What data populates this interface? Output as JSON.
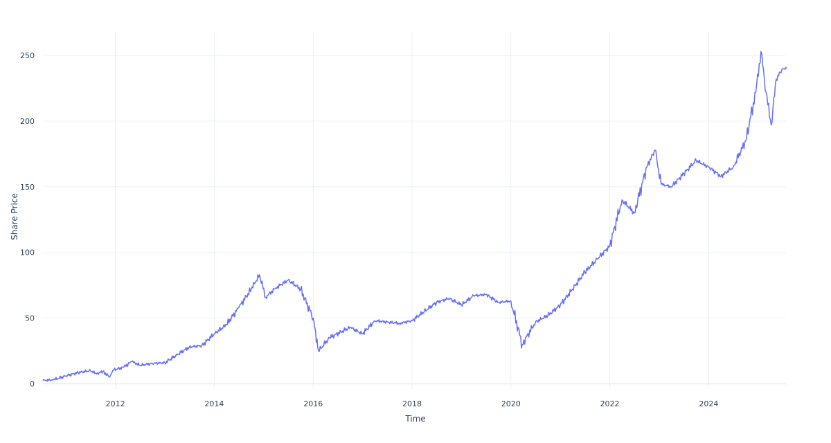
{
  "chart_data": {
    "type": "line",
    "title": "",
    "xlabel": "Time",
    "ylabel": "Share Price",
    "x_ticks": [
      "2012",
      "2014",
      "2016",
      "2018",
      "2020",
      "2022",
      "2024"
    ],
    "y_ticks": [
      "0",
      "50",
      "100",
      "150",
      "200",
      "250"
    ],
    "x_range": [
      "2010-07-15",
      "2025-07-31"
    ],
    "ylim": [
      -4,
      268
    ],
    "grid": true,
    "legend": "none",
    "series": [
      {
        "color": "#636efa",
        "points": [
          [
            "2010-07-15",
            2.5
          ],
          [
            "2010-10-01",
            3.0
          ],
          [
            "2011-01-01",
            6.0
          ],
          [
            "2011-04-01",
            8.5
          ],
          [
            "2011-07-01",
            10.0
          ],
          [
            "2011-08-15",
            7.5
          ],
          [
            "2011-10-01",
            9.5
          ],
          [
            "2011-11-20",
            5.0
          ],
          [
            "2011-12-15",
            10.5
          ],
          [
            "2012-03-01",
            12.5
          ],
          [
            "2012-05-01",
            17.0
          ],
          [
            "2012-07-01",
            14.0
          ],
          [
            "2012-10-01",
            15.5
          ],
          [
            "2013-01-01",
            16.0
          ],
          [
            "2013-04-01",
            22.0
          ],
          [
            "2013-07-01",
            28.0
          ],
          [
            "2013-10-01",
            29.0
          ],
          [
            "2014-01-01",
            38.0
          ],
          [
            "2014-04-01",
            45.0
          ],
          [
            "2014-07-01",
            58.0
          ],
          [
            "2014-10-01",
            72.0
          ],
          [
            "2014-12-01",
            83.0
          ],
          [
            "2015-01-15",
            66.0
          ],
          [
            "2015-04-01",
            73.0
          ],
          [
            "2015-07-01",
            79.0
          ],
          [
            "2015-10-01",
            72.0
          ],
          [
            "2016-01-01",
            50.0
          ],
          [
            "2016-02-10",
            25.0
          ],
          [
            "2016-05-01",
            35.0
          ],
          [
            "2016-10-01",
            43.0
          ],
          [
            "2017-01-01",
            38.0
          ],
          [
            "2017-04-01",
            48.0
          ],
          [
            "2017-10-01",
            46.0
          ],
          [
            "2018-01-01",
            48.0
          ],
          [
            "2018-04-01",
            55.0
          ],
          [
            "2018-07-01",
            62.0
          ],
          [
            "2018-10-01",
            65.0
          ],
          [
            "2019-01-01",
            60.0
          ],
          [
            "2019-04-01",
            67.0
          ],
          [
            "2019-07-01",
            68.0
          ],
          [
            "2019-10-01",
            62.0
          ],
          [
            "2020-01-01",
            63.0
          ],
          [
            "2020-03-25",
            30.0
          ],
          [
            "2020-07-01",
            47.0
          ],
          [
            "2020-10-01",
            52.0
          ],
          [
            "2021-01-01",
            60.0
          ],
          [
            "2021-04-01",
            72.0
          ],
          [
            "2021-07-01",
            85.0
          ],
          [
            "2021-10-01",
            95.0
          ],
          [
            "2022-01-01",
            105.0
          ],
          [
            "2022-04-01",
            140.0
          ],
          [
            "2022-07-01",
            130.0
          ],
          [
            "2022-10-01",
            165.0
          ],
          [
            "2022-12-01",
            178.0
          ],
          [
            "2023-01-15",
            152.0
          ],
          [
            "2023-04-01",
            150.0
          ],
          [
            "2023-07-01",
            160.0
          ],
          [
            "2023-10-01",
            170.0
          ],
          [
            "2024-01-01",
            165.0
          ],
          [
            "2024-04-01",
            158.0
          ],
          [
            "2024-07-01",
            165.0
          ],
          [
            "2024-10-01",
            185.0
          ],
          [
            "2024-12-15",
            222.0
          ],
          [
            "2025-01-22",
            253.0
          ],
          [
            "2025-03-01",
            222.0
          ],
          [
            "2025-04-08",
            197.0
          ],
          [
            "2025-05-15",
            232.0
          ],
          [
            "2025-07-01",
            240.0
          ],
          [
            "2025-07-31",
            240.0
          ]
        ]
      }
    ]
  }
}
